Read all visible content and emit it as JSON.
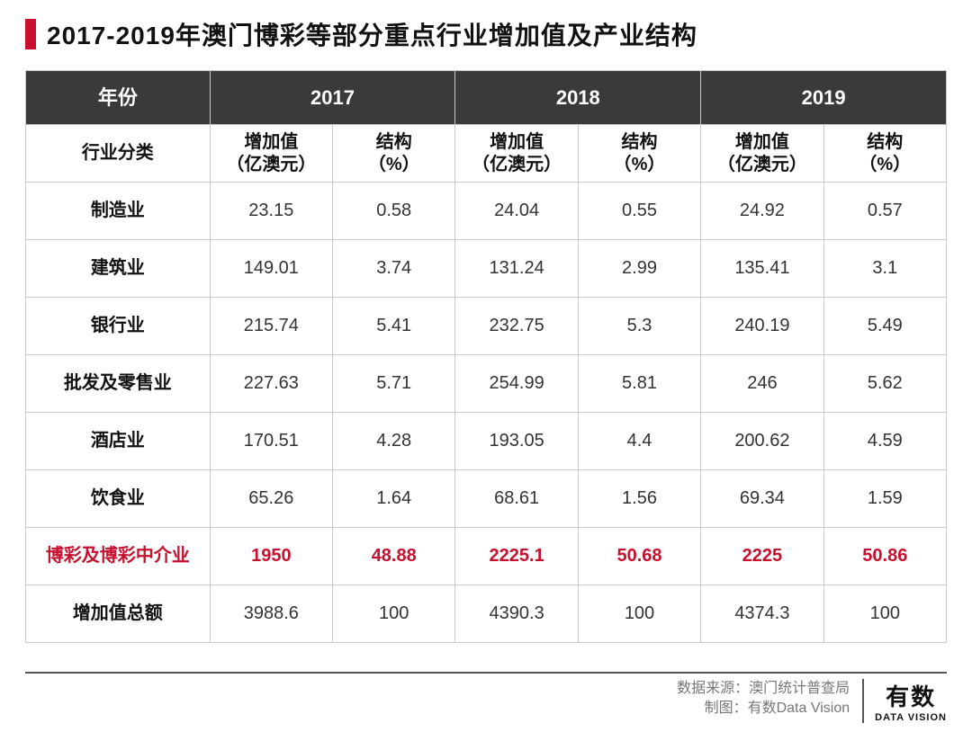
{
  "title": "2017-2019年澳门博彩等部分重点行业增加值及产业结构",
  "colors": {
    "accent": "#c8102e",
    "header_bg": "#3a3a3a",
    "border": "#c9c9c9",
    "text": "#222222",
    "muted": "#777777"
  },
  "table": {
    "type": "table",
    "years": [
      "2017",
      "2018",
      "2019"
    ],
    "header_year_label": "年份",
    "header_category_label": "行业分类",
    "sub_headers": {
      "value": "增加值\n（亿澳元）",
      "share": "结构\n（%）"
    },
    "col_widths_pct": [
      20,
      13.33,
      13.33,
      13.33,
      13.33,
      13.33,
      13.33
    ],
    "rows": [
      {
        "label": "制造业",
        "values": [
          "23.15",
          "0.58",
          "24.04",
          "0.55",
          "24.92",
          "0.57"
        ],
        "highlight": false
      },
      {
        "label": "建筑业",
        "values": [
          "149.01",
          "3.74",
          "131.24",
          "2.99",
          "135.41",
          "3.1"
        ],
        "highlight": false
      },
      {
        "label": "银行业",
        "values": [
          "215.74",
          "5.41",
          "232.75",
          "5.3",
          "240.19",
          "5.49"
        ],
        "highlight": false
      },
      {
        "label": "批发及零售业",
        "values": [
          "227.63",
          "5.71",
          "254.99",
          "5.81",
          "246",
          "5.62"
        ],
        "highlight": false
      },
      {
        "label": "酒店业",
        "values": [
          "170.51",
          "4.28",
          "193.05",
          "4.4",
          "200.62",
          "4.59"
        ],
        "highlight": false
      },
      {
        "label": "饮食业",
        "values": [
          "65.26",
          "1.64",
          "68.61",
          "1.56",
          "69.34",
          "1.59"
        ],
        "highlight": false
      },
      {
        "label": "博彩及博彩中介业",
        "values": [
          "1950",
          "48.88",
          "2225.1",
          "50.68",
          "2225",
          "50.86"
        ],
        "highlight": true
      },
      {
        "label": "增加值总额",
        "values": [
          "3988.6",
          "100",
          "4390.3",
          "100",
          "4374.3",
          "100"
        ],
        "highlight": false
      }
    ]
  },
  "footer": {
    "source_label": "数据来源：",
    "source_value": "澳门统计普查局",
    "credit_label": "制图：",
    "credit_value": "有数Data Vision",
    "logo_cn": "有数",
    "logo_en": "DATA VISION"
  }
}
